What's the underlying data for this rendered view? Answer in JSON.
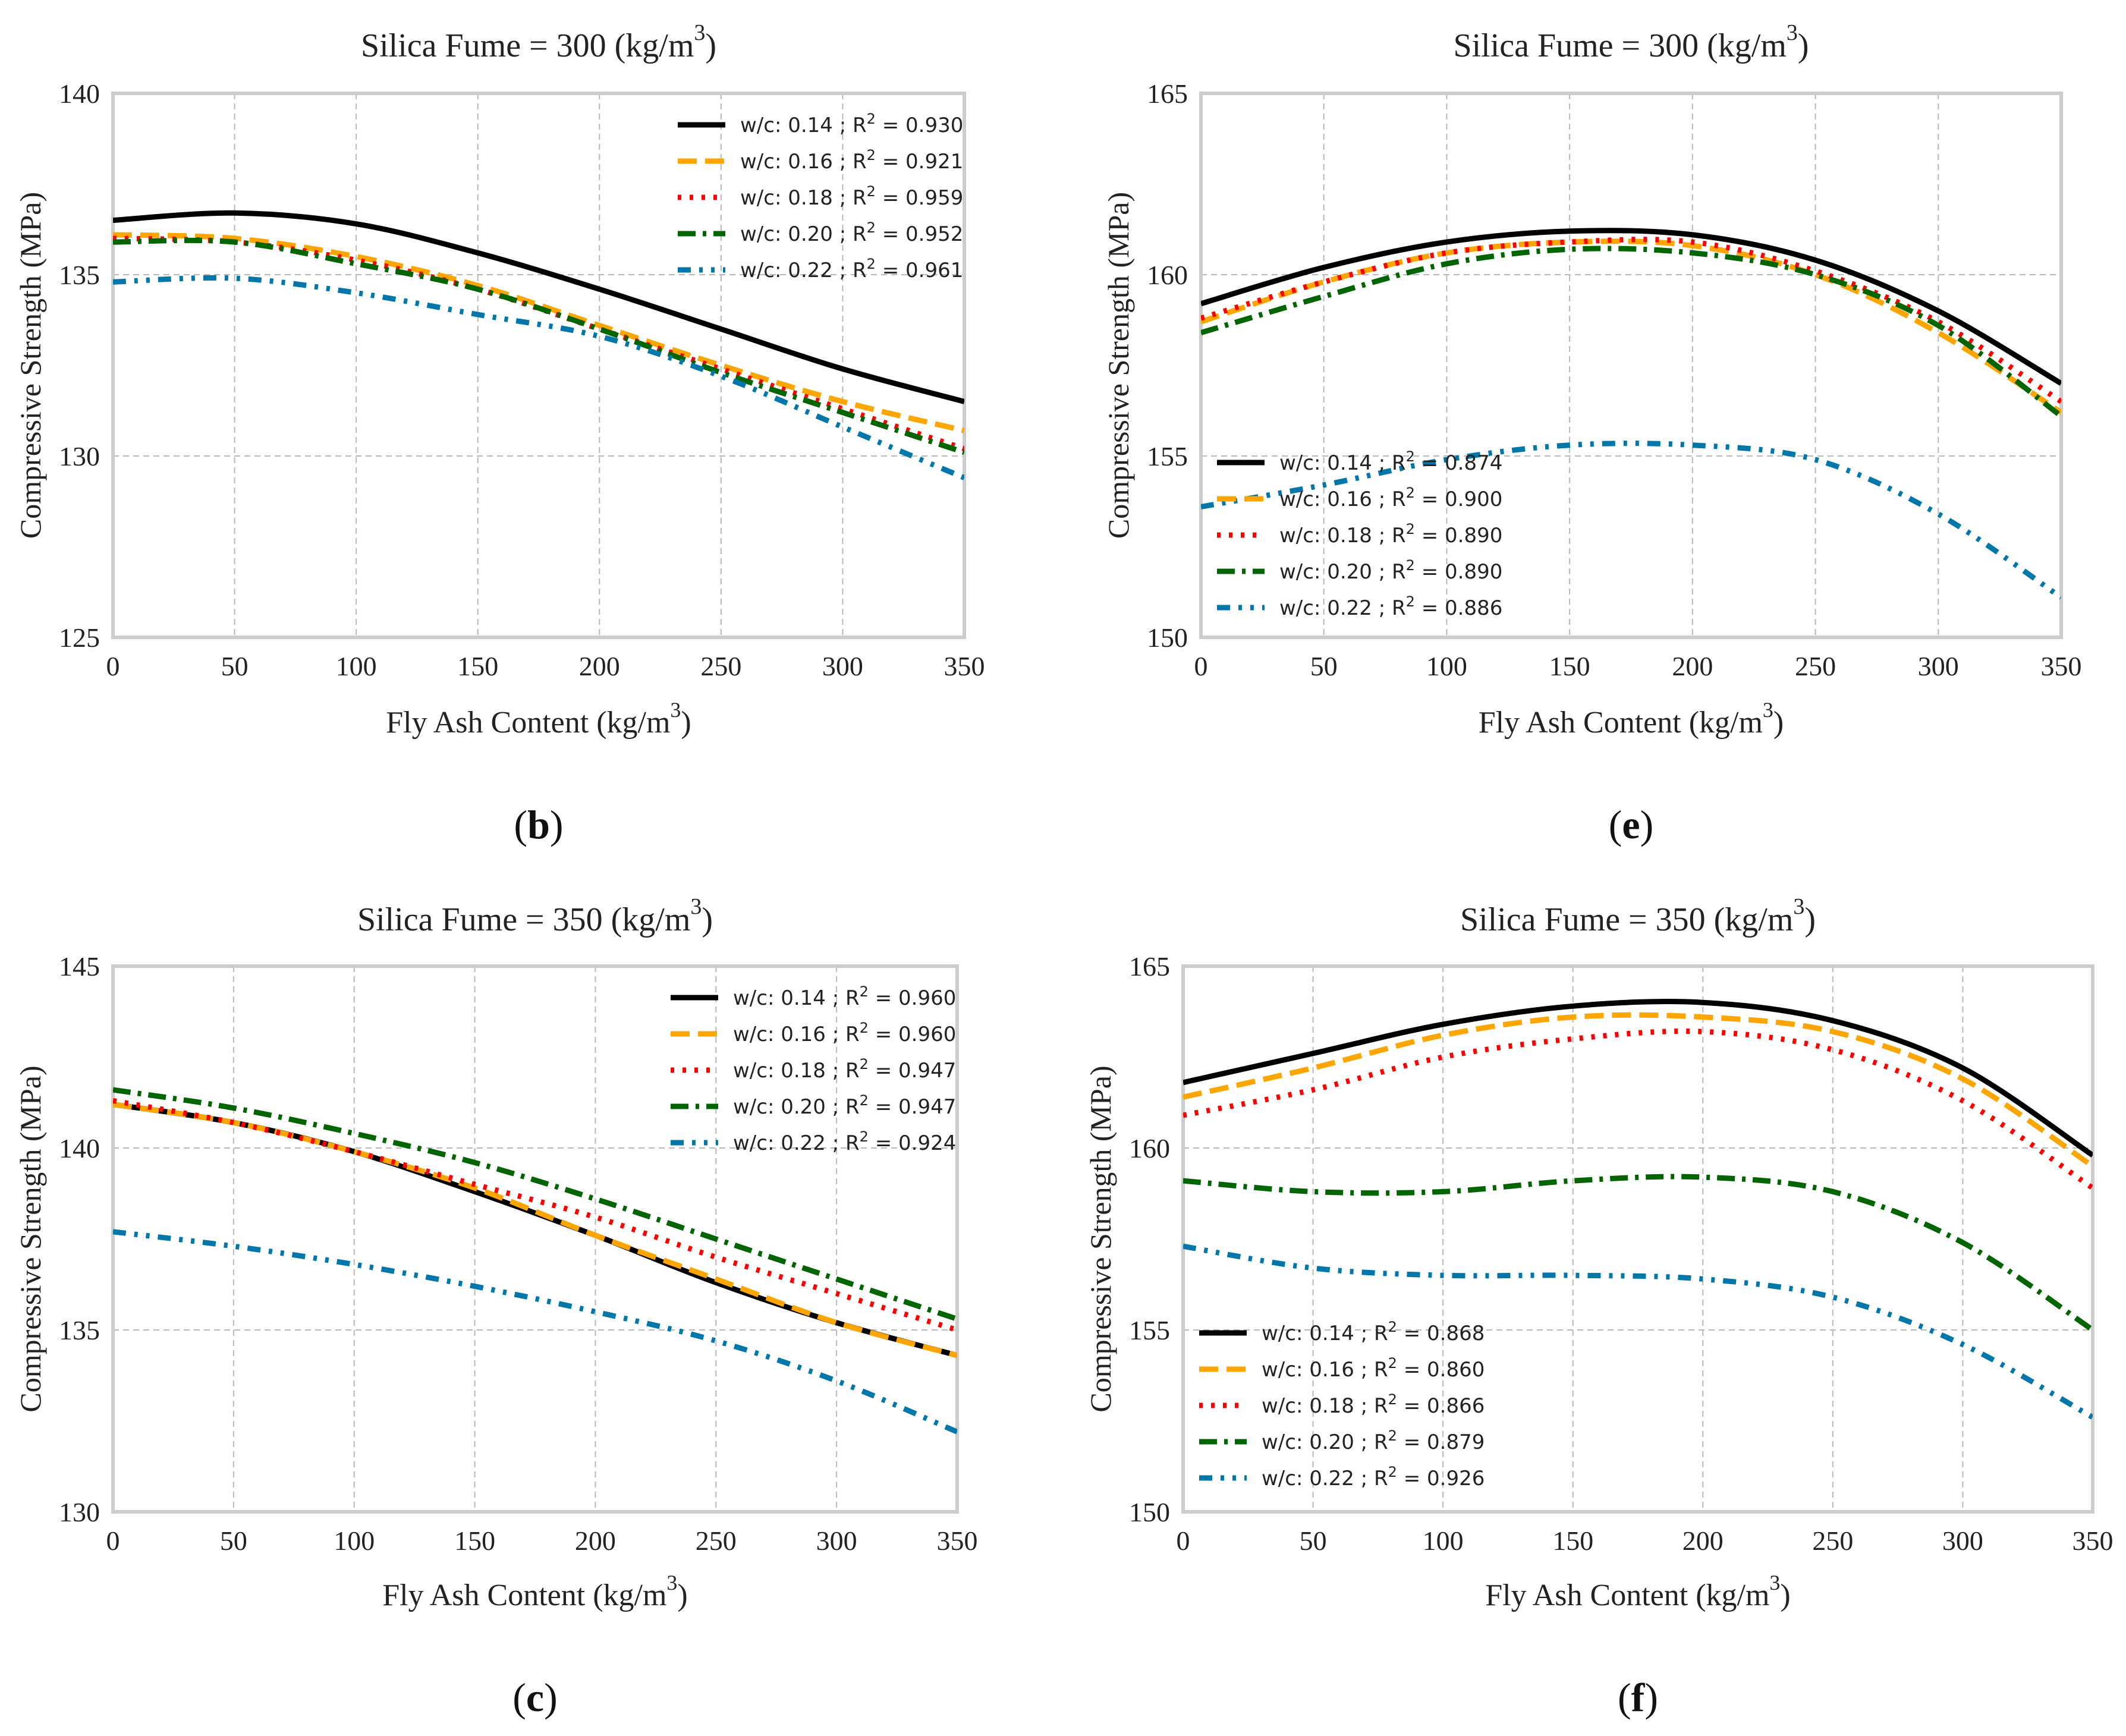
{
  "figure": {
    "panel_labels": [
      {
        "prefix": "(",
        "letter": "b",
        "suffix": ")"
      },
      {
        "prefix": "(",
        "letter": "e",
        "suffix": ")"
      },
      {
        "prefix": "(",
        "letter": "c",
        "suffix": ")"
      },
      {
        "prefix": "(",
        "letter": "f",
        "suffix": ")"
      }
    ]
  },
  "chart_data": [
    {
      "type": "line",
      "panel": "b",
      "title": "Silica Fume = 300 (kg/m",
      "title_sup": "3",
      "title_suffix": ")",
      "xlabel": "Fly Ash Content (kg/m",
      "xlabel_sup": "3",
      "xlabel_suffix": ")",
      "ylabel": "Compressive Strength (MPa)",
      "xlim": [
        0,
        350
      ],
      "ylim": [
        125,
        140
      ],
      "xticks": [
        0,
        50,
        100,
        150,
        200,
        250,
        300,
        350
      ],
      "yticks": [
        125,
        130,
        135,
        140
      ],
      "grid": true,
      "legend_position": "top-right",
      "x": [
        0,
        50,
        100,
        150,
        200,
        250,
        300,
        350
      ],
      "series": [
        {
          "name": "w/c: 0.14 ; R2 = 0.930",
          "wc": "w/c: 0.14 ; R",
          "r2": " = 0.930",
          "color": "#000000",
          "dash": "solid",
          "values": [
            136.5,
            136.7,
            136.4,
            135.6,
            134.6,
            133.5,
            132.4,
            131.5
          ]
        },
        {
          "name": "w/c: 0.16 ; R2 = 0.921",
          "wc": "w/c: 0.16 ; R",
          "r2": " = 0.921",
          "color": "#FFA500",
          "dash": "dashed",
          "values": [
            136.1,
            136.0,
            135.5,
            134.7,
            133.6,
            132.5,
            131.5,
            130.7
          ]
        },
        {
          "name": "w/c: 0.18 ; R2 = 0.959",
          "wc": "w/c: 0.18 ; R",
          "r2": " = 0.959",
          "color": "#FF0000",
          "dash": "dotted",
          "values": [
            136.0,
            135.9,
            135.4,
            134.6,
            133.5,
            132.4,
            131.3,
            130.2
          ]
        },
        {
          "name": "w/c: 0.20 ; R2 = 0.952",
          "wc": "w/c: 0.20 ; R",
          "r2": " = 0.952",
          "color": "#006400",
          "dash": "dashdot",
          "values": [
            135.9,
            135.9,
            135.3,
            134.6,
            133.5,
            132.3,
            131.2,
            130.1
          ]
        },
        {
          "name": "w/c: 0.22 ; R2 = 0.961",
          "wc": "w/c: 0.22 ; R",
          "r2": " = 0.961",
          "color": "#0077AA",
          "dash": "dashdotdot",
          "values": [
            134.8,
            134.9,
            134.5,
            133.9,
            133.3,
            132.2,
            130.8,
            129.4
          ]
        }
      ]
    },
    {
      "type": "line",
      "panel": "e",
      "title": "Silica Fume = 300 (kg/m",
      "title_sup": "3",
      "title_suffix": ")",
      "xlabel": "Fly Ash Content (kg/m",
      "xlabel_sup": "3",
      "xlabel_suffix": ")",
      "ylabel": "Compressive Strength (MPa)",
      "xlim": [
        0,
        350
      ],
      "ylim": [
        150,
        165
      ],
      "xticks": [
        0,
        50,
        100,
        150,
        200,
        250,
        300,
        350
      ],
      "yticks": [
        150,
        155,
        160,
        165
      ],
      "grid": true,
      "legend_position": "lower-left",
      "x": [
        0,
        50,
        100,
        150,
        200,
        250,
        300,
        350
      ],
      "series": [
        {
          "name": "w/c: 0.14 ; R2 = 0.874",
          "wc": "w/c: 0.14 ; R",
          "r2": " = 0.874",
          "color": "#000000",
          "dash": "solid",
          "values": [
            159.2,
            160.2,
            160.9,
            161.2,
            161.1,
            160.4,
            159.0,
            157.0
          ]
        },
        {
          "name": "w/c: 0.16 ; R2 = 0.900",
          "wc": "w/c: 0.16 ; R",
          "r2": " = 0.900",
          "color": "#FFA500",
          "dash": "dashed",
          "values": [
            158.7,
            159.8,
            160.6,
            160.9,
            160.8,
            160.0,
            158.4,
            156.2
          ]
        },
        {
          "name": "w/c: 0.18 ; R2 = 0.890",
          "wc": "w/c: 0.18 ; R",
          "r2": " = 0.890",
          "color": "#FF0000",
          "dash": "dotted",
          "values": [
            158.8,
            159.8,
            160.6,
            160.9,
            160.9,
            160.1,
            158.7,
            156.5
          ]
        },
        {
          "name": "w/c: 0.20 ; R2 = 0.890",
          "wc": "w/c: 0.20 ; R",
          "r2": " = 0.890",
          "color": "#006400",
          "dash": "dashdot",
          "values": [
            158.4,
            159.4,
            160.3,
            160.7,
            160.6,
            160.0,
            158.6,
            156.1
          ]
        },
        {
          "name": "w/c: 0.22 ; R2 = 0.886",
          "wc": "w/c: 0.22 ; R",
          "r2": " = 0.886",
          "color": "#0077AA",
          "dash": "dashdotdot",
          "values": [
            153.6,
            154.2,
            154.9,
            155.3,
            155.3,
            154.9,
            153.4,
            151.1
          ]
        }
      ]
    },
    {
      "type": "line",
      "panel": "c",
      "title": "Silica Fume = 350 (kg/m",
      "title_sup": "3",
      "title_suffix": ")",
      "xlabel": "Fly Ash Content (kg/m",
      "xlabel_sup": "3",
      "xlabel_suffix": ")",
      "ylabel": "Compressive Strength (MPa)",
      "xlim": [
        0,
        350
      ],
      "ylim": [
        130,
        145
      ],
      "xticks": [
        0,
        50,
        100,
        150,
        200,
        250,
        300,
        350
      ],
      "yticks": [
        130,
        135,
        140,
        145
      ],
      "grid": true,
      "legend_position": "top-right",
      "x": [
        0,
        50,
        100,
        150,
        200,
        250,
        300,
        350
      ],
      "series": [
        {
          "name": "w/c: 0.14 ; R2 = 0.960",
          "wc": "w/c: 0.14 ; R",
          "r2": " = 0.960",
          "color": "#000000",
          "dash": "solid",
          "values": [
            141.2,
            140.7,
            139.9,
            138.8,
            137.6,
            136.3,
            135.2,
            134.3
          ]
        },
        {
          "name": "w/c: 0.16 ; R2 = 0.960",
          "wc": "w/c: 0.16 ; R",
          "r2": " = 0.960",
          "color": "#FFA500",
          "dash": "dashed",
          "values": [
            141.2,
            140.7,
            139.9,
            138.9,
            137.6,
            136.4,
            135.2,
            134.3
          ]
        },
        {
          "name": "w/c: 0.18 ; R2 = 0.947",
          "wc": "w/c: 0.18 ; R",
          "r2": " = 0.947",
          "color": "#FF0000",
          "dash": "dotted",
          "values": [
            141.3,
            140.7,
            139.9,
            139.0,
            138.1,
            137.0,
            136.0,
            135.0
          ]
        },
        {
          "name": "w/c: 0.20 ; R2 = 0.947",
          "wc": "w/c: 0.20 ; R",
          "r2": " = 0.947",
          "color": "#006400",
          "dash": "dashdot",
          "values": [
            141.6,
            141.1,
            140.4,
            139.6,
            138.6,
            137.5,
            136.4,
            135.3
          ]
        },
        {
          "name": "w/c: 0.22 ; R2 = 0.924",
          "wc": "w/c: 0.22 ; R",
          "r2": " = 0.924",
          "color": "#0077AA",
          "dash": "dashdotdot",
          "values": [
            137.7,
            137.3,
            136.8,
            136.2,
            135.5,
            134.7,
            133.6,
            132.2
          ]
        }
      ]
    },
    {
      "type": "line",
      "panel": "f",
      "title": "Silica Fume = 350 (kg/m",
      "title_sup": "3",
      "title_suffix": ")",
      "xlabel": "Fly Ash Content (kg/m",
      "xlabel_sup": "3",
      "xlabel_suffix": ")",
      "ylabel": "Compressive Strength (MPa)",
      "xlim": [
        0,
        350
      ],
      "ylim": [
        150,
        165
      ],
      "xticks": [
        0,
        50,
        100,
        150,
        200,
        250,
        300,
        350
      ],
      "yticks": [
        150,
        155,
        160,
        165
      ],
      "grid": true,
      "legend_position": "lower-left",
      "x": [
        0,
        50,
        100,
        150,
        200,
        250,
        300,
        350
      ],
      "series": [
        {
          "name": "w/c: 0.14 ; R2 = 0.868",
          "wc": "w/c: 0.14 ; R",
          "r2": " = 0.868",
          "color": "#000000",
          "dash": "solid",
          "values": [
            161.8,
            162.6,
            163.4,
            163.9,
            164.0,
            163.5,
            162.2,
            159.8
          ]
        },
        {
          "name": "w/c: 0.16 ; R2 = 0.860",
          "wc": "w/c: 0.16 ; R",
          "r2": " = 0.860",
          "color": "#FFA500",
          "dash": "dashed",
          "values": [
            161.4,
            162.2,
            163.1,
            163.6,
            163.6,
            163.2,
            161.9,
            159.5
          ]
        },
        {
          "name": "w/c: 0.18 ; R2 = 0.866",
          "wc": "w/c: 0.18 ; R",
          "r2": " = 0.866",
          "color": "#FF0000",
          "dash": "dotted",
          "values": [
            160.9,
            161.6,
            162.5,
            163.0,
            163.2,
            162.7,
            161.3,
            158.9
          ]
        },
        {
          "name": "w/c: 0.20 ; R2 = 0.879",
          "wc": "w/c: 0.20 ; R",
          "r2": " = 0.879",
          "color": "#006400",
          "dash": "dashdot",
          "values": [
            159.1,
            158.8,
            158.8,
            159.1,
            159.2,
            158.8,
            157.4,
            155.0
          ]
        },
        {
          "name": "w/c: 0.22 ; R2 = 0.926",
          "wc": "w/c: 0.22 ; R",
          "r2": " = 0.926",
          "color": "#0077AA",
          "dash": "dashdotdot",
          "values": [
            157.3,
            156.7,
            156.5,
            156.5,
            156.4,
            155.9,
            154.6,
            152.6
          ]
        }
      ]
    }
  ]
}
